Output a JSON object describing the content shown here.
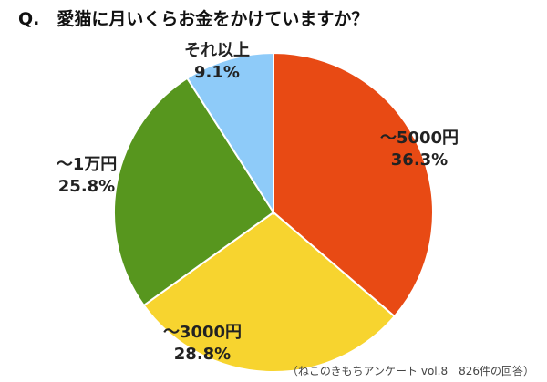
{
  "chart_data": {
    "type": "pie",
    "title": "Q.　愛猫に月いくらお金をかけていますか？",
    "categories": [
      "〜5000円",
      "〜3000円",
      "〜1万円",
      "それ以上"
    ],
    "values": [
      36.3,
      28.8,
      25.8,
      9.1
    ],
    "value_labels": [
      "36.3%",
      "28.8%",
      "25.8%",
      "9.1%"
    ],
    "colors": [
      "#E84A14",
      "#F7D42F",
      "#57961E",
      "#8ECBF9"
    ],
    "start": "12 o'clock",
    "direction": "clockwise",
    "source": "（ねこのきもちアンケート vol.8　826件の回答）"
  }
}
